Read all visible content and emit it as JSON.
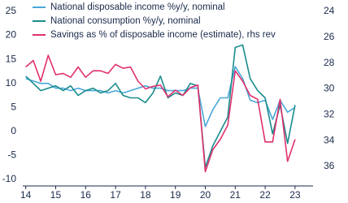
{
  "chart_data": {
    "type": "line",
    "xlim": [
      13.9,
      23.6
    ],
    "xticks": [
      14,
      15,
      16,
      17,
      18,
      19,
      20,
      21,
      22,
      23
    ],
    "ylim": [
      -10,
      25
    ],
    "yticks": [
      -10,
      -5,
      0,
      5,
      10,
      15,
      20,
      25
    ],
    "y2lim": [
      37,
      24
    ],
    "y2ticks": [
      24,
      26,
      28,
      30,
      32,
      34,
      36
    ],
    "legend": "upper left",
    "x": [
      14,
      14.25,
      14.5,
      14.75,
      15,
      15.25,
      15.5,
      15.75,
      16,
      16.25,
      16.5,
      16.75,
      17,
      17.25,
      17.5,
      17.75,
      18,
      18.25,
      18.5,
      18.75,
      19,
      19.25,
      19.5,
      19.75,
      20,
      20.25,
      20.5,
      20.75,
      21,
      21.25,
      21.5,
      21.75,
      22,
      22.25,
      22.5,
      22.75,
      23
    ],
    "series": [
      {
        "name": "National disposable income %y/y, nominal",
        "color": "#4aa8d8",
        "values": [
          11,
          10.5,
          10,
          10,
          9,
          9,
          8.5,
          9,
          8.5,
          8.5,
          8.5,
          8,
          8.5,
          8,
          8.5,
          9,
          9.5,
          9,
          9,
          8.5,
          8.5,
          8.5,
          9,
          9,
          1,
          4.5,
          7,
          7,
          13.5,
          11,
          6.5,
          6,
          6.5,
          2.5,
          6.5,
          4,
          5
        ]
      },
      {
        "name": "National consumption %y/y, nominal",
        "color": "#1a8c8c",
        "values": [
          11.5,
          10,
          8.5,
          9,
          9.5,
          8.5,
          9.5,
          7.5,
          8.5,
          9,
          8,
          8.5,
          10,
          7.5,
          7,
          7,
          6,
          8,
          11.5,
          7,
          8,
          7.5,
          10,
          9.5,
          -7.5,
          -3,
          0,
          3,
          17.5,
          18,
          11,
          8.5,
          7,
          -0.5,
          5.5,
          -2.5,
          5.5
        ]
      },
      {
        "name": "Savings as % of disposable income (estimate), rhs rev",
        "color": "#e0306e",
        "axis": "y2",
        "values": [
          28.3,
          27.8,
          29.4,
          27.4,
          28.9,
          28.8,
          29.1,
          28.3,
          29.1,
          28.6,
          28.6,
          28.8,
          28.1,
          28.4,
          28.3,
          29.4,
          30,
          29.8,
          29.7,
          30.6,
          30.1,
          30.5,
          29.9,
          29.7,
          36.4,
          34.7,
          33.9,
          32.8,
          28.6,
          29.4,
          30.5,
          30.8,
          34.1,
          34.1,
          30.8,
          35.6,
          33.9
        ]
      }
    ]
  }
}
